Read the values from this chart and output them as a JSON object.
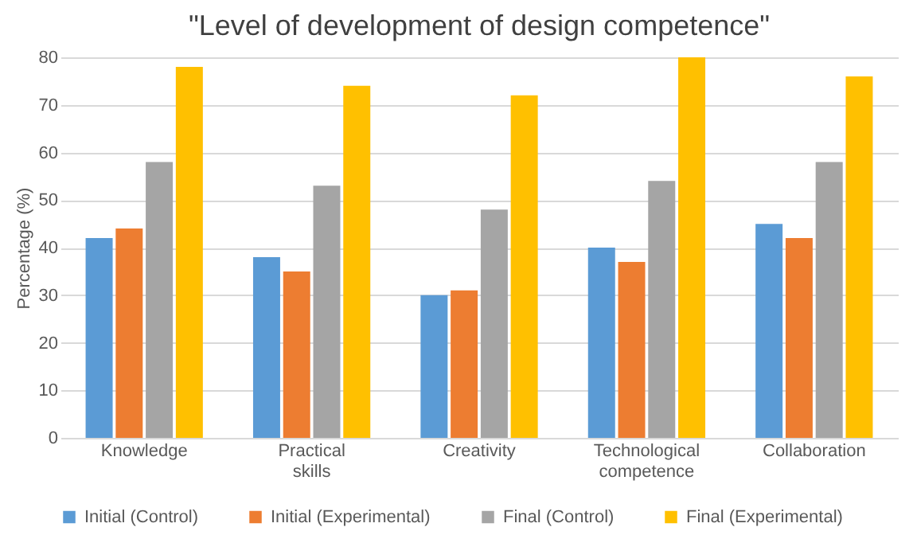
{
  "chart_data": {
    "type": "bar",
    "title": "\"Level of development of design competence\"",
    "ylabel": "Percentage (%)",
    "categories": [
      "Knowledge",
      "Practical skills",
      "Creativity",
      "Technological competence",
      "Collaboration"
    ],
    "series": [
      {
        "name": "Initial (Control)",
        "color": "#5b9bd5",
        "values": [
          42,
          38,
          30,
          40,
          45
        ]
      },
      {
        "name": "Initial (Experimental)",
        "color": "#ed7d31",
        "values": [
          44,
          35,
          31,
          37,
          42
        ]
      },
      {
        "name": "Final (Control)",
        "color": "#a5a5a5",
        "values": [
          58,
          53,
          48,
          54,
          58
        ]
      },
      {
        "name": "Final (Experimental)",
        "color": "#ffc000",
        "values": [
          78,
          74,
          72,
          80,
          76
        ]
      }
    ],
    "ylim": [
      0,
      80
    ],
    "yticks": [
      0,
      10,
      20,
      30,
      40,
      50,
      60,
      70,
      80
    ],
    "grid": "y",
    "legend": "bottom"
  }
}
